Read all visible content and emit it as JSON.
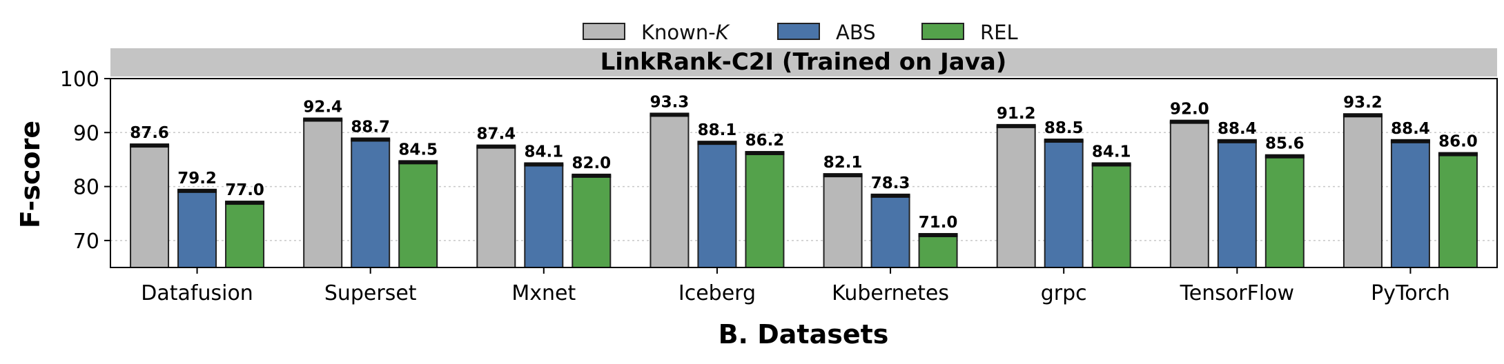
{
  "chart_data": {
    "type": "bar",
    "title": "LinkRank-C2I (Trained on Java)",
    "xlabel": "B. Datasets",
    "ylabel": "F-score",
    "ylim": [
      65,
      100
    ],
    "yticks": [
      70,
      80,
      90,
      100
    ],
    "grid": true,
    "legend_position": "top-center",
    "categories": [
      "Datafusion",
      "Superset",
      "Mxnet",
      "Iceberg",
      "Kubernetes",
      "grpc",
      "TensorFlow",
      "PyTorch"
    ],
    "series": [
      {
        "name": "Known-K",
        "color": "#b8b8b8",
        "values": [
          87.6,
          92.4,
          87.4,
          93.3,
          82.1,
          91.2,
          92.0,
          93.2
        ]
      },
      {
        "name": "ABS",
        "color": "#4a74a8",
        "values": [
          79.2,
          88.7,
          84.1,
          88.1,
          78.3,
          88.5,
          88.4,
          88.4
        ]
      },
      {
        "name": "REL",
        "color": "#54a24b",
        "values": [
          77.0,
          84.5,
          82.0,
          86.2,
          71.0,
          84.1,
          85.6,
          86.0
        ]
      }
    ]
  }
}
